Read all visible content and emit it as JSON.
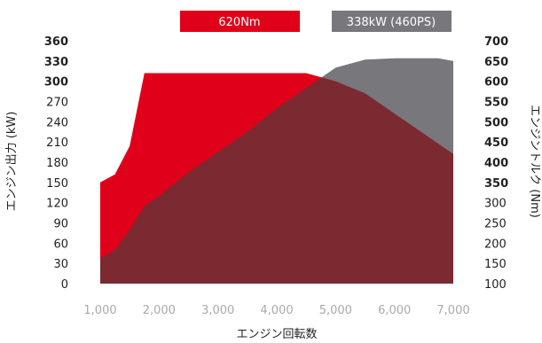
{
  "chart_data": {
    "type": "area",
    "xlabel": "エンジン回転数",
    "ylabel_left": "エンジン出力 (kW)",
    "ylabel_right": "エンジントルク (Nm)",
    "xlim": [
      1000,
      7000
    ],
    "x_ticks": [
      "1,000",
      "2,000",
      "3,000",
      "4,000",
      "5,000",
      "6,000",
      "7,000"
    ],
    "ylim_left": [
      0,
      360
    ],
    "ylim_right": [
      100,
      700
    ],
    "left_ticks": [
      {
        "label": "0",
        "value": 0,
        "bold": false
      },
      {
        "label": "30",
        "value": 30,
        "bold": false
      },
      {
        "label": "60",
        "value": 60,
        "bold": false
      },
      {
        "label": "90",
        "value": 90,
        "bold": false
      },
      {
        "label": "120",
        "value": 120,
        "bold": false
      },
      {
        "label": "150",
        "value": 150,
        "bold": false
      },
      {
        "label": "180",
        "value": 180,
        "bold": false
      },
      {
        "label": "210",
        "value": 210,
        "bold": false
      },
      {
        "label": "240",
        "value": 240,
        "bold": false
      },
      {
        "label": "270",
        "value": 270,
        "bold": false
      },
      {
        "label": "300",
        "value": 300,
        "bold": true
      },
      {
        "label": "330",
        "value": 330,
        "bold": true
      },
      {
        "label": "360",
        "value": 360,
        "bold": true
      }
    ],
    "right_ticks": [
      {
        "label": "100",
        "value": 100,
        "bold": false
      },
      {
        "label": "150",
        "value": 150,
        "bold": false
      },
      {
        "label": "200",
        "value": 200,
        "bold": false
      },
      {
        "label": "250",
        "value": 250,
        "bold": false
      },
      {
        "label": "300",
        "value": 300,
        "bold": false
      },
      {
        "label": "350",
        "value": 350,
        "bold": true
      },
      {
        "label": "400",
        "value": 400,
        "bold": true
      },
      {
        "label": "450",
        "value": 450,
        "bold": true
      },
      {
        "label": "500",
        "value": 500,
        "bold": true
      },
      {
        "label": "550",
        "value": 550,
        "bold": true
      },
      {
        "label": "600",
        "value": 600,
        "bold": true
      },
      {
        "label": "650",
        "value": 650,
        "bold": true
      },
      {
        "label": "700",
        "value": 700,
        "bold": true
      }
    ],
    "series": [
      {
        "name": "620Nm",
        "axis": "right",
        "color": "#e0001a",
        "x": [
          1000,
          1250,
          1500,
          1750,
          1800,
          4500,
          4750,
          5000,
          5500,
          6000,
          6500,
          7000
        ],
        "values": [
          350,
          370,
          440,
          620,
          620,
          620,
          610,
          600,
          570,
          520,
          470,
          420
        ]
      },
      {
        "name": "338kW (460PS)",
        "axis": "left",
        "color": "#77777c",
        "x": [
          1000,
          1250,
          1500,
          1750,
          2000,
          2500,
          3000,
          3500,
          4000,
          4500,
          5000,
          5500,
          6000,
          6500,
          6750,
          7000
        ],
        "values": [
          37,
          50,
          80,
          115,
          130,
          165,
          195,
          225,
          260,
          290,
          320,
          332,
          334,
          334,
          334,
          330
        ]
      }
    ],
    "overlap_color": "#7a2a30",
    "grid": false
  }
}
